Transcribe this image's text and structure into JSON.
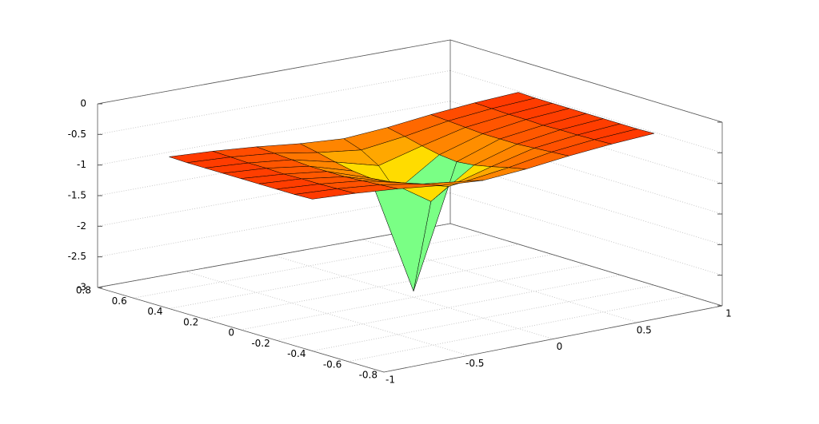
{
  "chart_data": {
    "type": "surface",
    "x": [
      -1,
      -0.75,
      -0.5,
      -0.25,
      0,
      0.25,
      0.5,
      0.75,
      1
    ],
    "y": [
      -0.4,
      -0.3,
      -0.2,
      -0.1,
      0,
      0.1,
      0.2,
      0.3,
      0.4
    ],
    "z": [
      [
        -0.52,
        -0.53,
        -0.53,
        -0.53,
        -0.53,
        -0.53,
        -0.53,
        -0.53,
        -0.52
      ],
      [
        -0.56,
        -0.57,
        -0.58,
        -0.58,
        -0.59,
        -0.58,
        -0.58,
        -0.57,
        -0.56
      ],
      [
        -0.62,
        -0.64,
        -0.66,
        -0.68,
        -0.68,
        -0.68,
        -0.66,
        -0.64,
        -0.62
      ],
      [
        -0.7,
        -0.76,
        -0.83,
        -0.89,
        -0.92,
        -0.89,
        -0.83,
        -0.76,
        -0.7
      ],
      [
        -0.75,
        -0.85,
        -1.02,
        -1.35,
        -2.9,
        -1.35,
        -1.02,
        -0.85,
        -0.75
      ],
      [
        -0.7,
        -0.76,
        -0.83,
        -0.89,
        -0.92,
        -0.89,
        -0.83,
        -0.76,
        -0.7
      ],
      [
        -0.62,
        -0.64,
        -0.66,
        -0.68,
        -0.68,
        -0.68,
        -0.66,
        -0.64,
        -0.62
      ],
      [
        -0.56,
        -0.57,
        -0.58,
        -0.58,
        -0.59,
        -0.58,
        -0.58,
        -0.57,
        -0.56
      ],
      [
        -0.52,
        -0.53,
        -0.53,
        -0.53,
        -0.53,
        -0.53,
        -0.53,
        -0.53,
        -0.52
      ]
    ],
    "colormap": "jet",
    "xlim": [
      -1,
      1
    ],
    "xticks": [
      -1,
      -0.5,
      0,
      0.5,
      1
    ],
    "ylim": [
      -0.8,
      0.8
    ],
    "yticks": [
      -0.8,
      -0.6,
      -0.4,
      -0.2,
      0,
      0.2,
      0.4,
      0.6,
      0.8
    ],
    "zlim": [
      -3,
      0
    ],
    "zticks": [
      -3,
      -2.5,
      -2,
      -1.5,
      -1,
      -0.5,
      0
    ],
    "grid": true
  }
}
